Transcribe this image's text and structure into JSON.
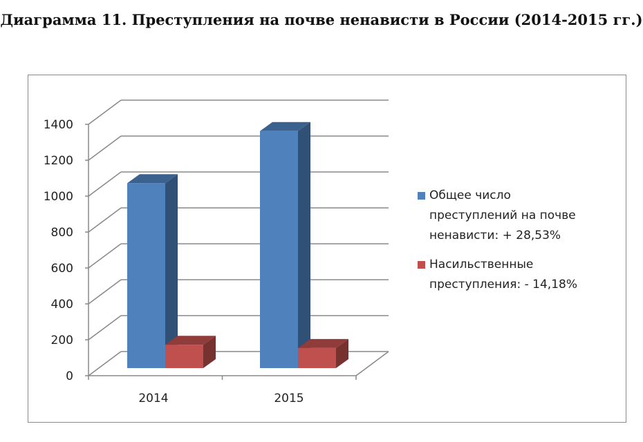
{
  "chart_data": {
    "type": "bar",
    "title": "Диаграмма 11. Преступления на почве ненависти в России (2014-2015 гг.)",
    "categories": [
      "2014",
      "2015"
    ],
    "series": [
      {
        "name": "Общее число преступлений на почве ненависти: + 28,53%",
        "legend_lines": [
          "Общее число",
          "преступлений на почве",
          "ненависти: + 28,53%"
        ],
        "values": [
          1030,
          1320
        ],
        "color": "#4f81bd"
      },
      {
        "name": "Насильственные преступления: - 14,18%",
        "legend_lines": [
          "Насильственные",
          "преступления: - 14,18%"
        ],
        "values": [
          130,
          112
        ],
        "color": "#c0504d"
      }
    ],
    "yticks": [
      "0",
      "200",
      "400",
      "600",
      "800",
      "1000",
      "1200",
      "1400"
    ],
    "ylim": [
      0,
      1400
    ],
    "grid": true,
    "legend": "right",
    "style": "3d-column"
  }
}
